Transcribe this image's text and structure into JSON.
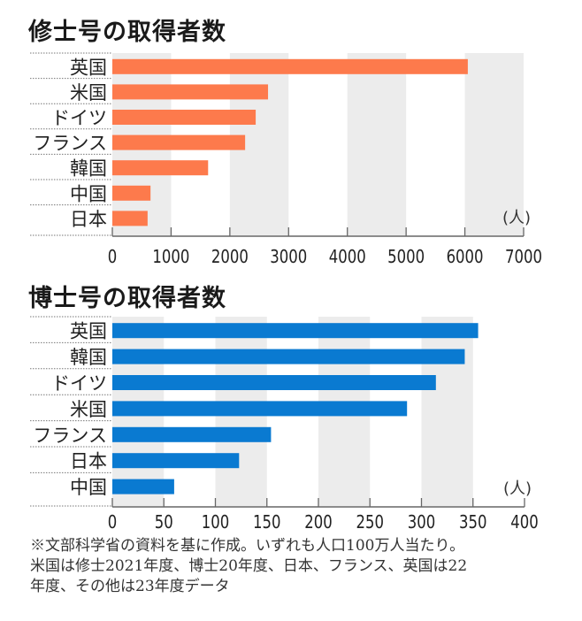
{
  "chart_data": [
    {
      "type": "bar",
      "orientation": "horizontal",
      "title": "修士号の取得者数",
      "categories": [
        "英国",
        "米国",
        "ドイツ",
        "フランス",
        "韓国",
        "中国",
        "日本"
      ],
      "values": [
        6050,
        2650,
        2440,
        2260,
        1630,
        650,
        600
      ],
      "unit_label": "(人)",
      "xlim": [
        0,
        7000
      ],
      "ticks": [
        0,
        1000,
        2000,
        3000,
        4000,
        5000,
        6000,
        7000
      ],
      "tick_labels": [
        "0",
        "1000",
        "2000",
        "3000",
        "4000",
        "5000",
        "6000",
        "7000"
      ],
      "bar_color": "#fd7a4c",
      "band_color": "#ececec",
      "grid": "alternating bands"
    },
    {
      "type": "bar",
      "orientation": "horizontal",
      "title": "博士号の取得者数",
      "categories": [
        "英国",
        "韓国",
        "ドイツ",
        "米国",
        "フランス",
        "日本",
        "中国"
      ],
      "values": [
        355,
        342,
        314,
        286,
        154,
        123,
        60
      ],
      "unit_label": "(人)",
      "xlim": [
        0,
        400
      ],
      "ticks": [
        0,
        50,
        100,
        150,
        200,
        250,
        300,
        350,
        400
      ],
      "tick_labels": [
        "0",
        "50",
        "100",
        "150",
        "200",
        "250",
        "300",
        "350",
        "400"
      ],
      "bar_color": "#0a7ad1",
      "band_color": "#ececec",
      "grid": "alternating bands"
    }
  ],
  "footnote": {
    "lines": [
      "※文部科学省の資料を基に作成。いずれも人口100万人当たり。",
      "米国は修士2021年度、博士20年度、日本、フランス、英国は22",
      "年度、その他は23年度データ"
    ]
  }
}
